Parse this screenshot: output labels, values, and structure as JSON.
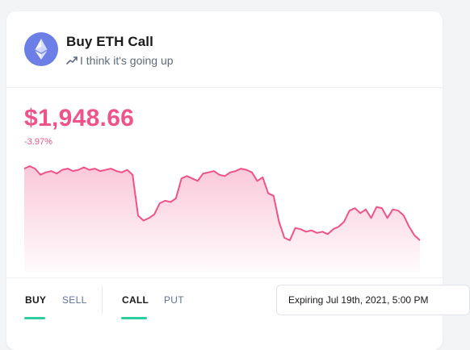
{
  "header": {
    "title": "Buy ETH Call",
    "subtitle": "I think it's going up",
    "logo_icon": "ethereum-icon",
    "subtitle_icon": "trending-up-icon"
  },
  "price": {
    "value": "$1,948.66",
    "change": "-3.97%"
  },
  "colors": {
    "accent": "#f0528a",
    "active_tab": "#2ecc9f",
    "eth_logo": "#6b7fe6"
  },
  "chart_data": {
    "type": "area",
    "title": "",
    "xlabel": "",
    "ylabel": "",
    "grid": false,
    "values": [
      1988,
      1990,
      1988,
      1983,
      1985,
      1986,
      1984,
      1987,
      1988,
      1986,
      1987,
      1989,
      1987,
      1988,
      1986,
      1987,
      1988,
      1986,
      1985,
      1987,
      1983,
      1950,
      1946,
      1948,
      1951,
      1960,
      1962,
      1961,
      1964,
      1980,
      1982,
      1980,
      1978,
      1984,
      1985,
      1986,
      1983,
      1982,
      1985,
      1986,
      1988,
      1987,
      1985,
      1978,
      1981,
      1968,
      1966,
      1945,
      1932,
      1930,
      1940,
      1939,
      1937,
      1938,
      1936,
      1937,
      1935,
      1939,
      1941,
      1945,
      1954,
      1956,
      1952,
      1955,
      1948,
      1957,
      1956,
      1948,
      1955,
      1954,
      1950,
      1941,
      1934,
      1930
    ]
  },
  "controls": {
    "side_tabs": [
      {
        "label": "BUY",
        "active": true
      },
      {
        "label": "SELL",
        "active": false
      }
    ],
    "type_tabs": [
      {
        "label": "CALL",
        "active": true
      },
      {
        "label": "PUT",
        "active": false
      }
    ],
    "expiry": "Expiring Jul 19th, 2021, 5:00 PM"
  }
}
